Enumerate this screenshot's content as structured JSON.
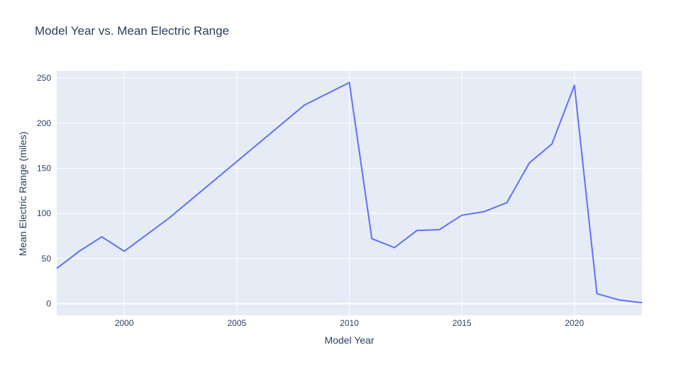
{
  "chart_data": {
    "type": "line",
    "title": "Model Year vs. Mean Electric Range",
    "xlabel": "Model Year",
    "ylabel": "Mean Electric Range (miles)",
    "xlim": [
      1997,
      2023
    ],
    "ylim": [
      -13,
      258
    ],
    "x_ticks": [
      2000,
      2005,
      2010,
      2015,
      2020
    ],
    "y_ticks": [
      0,
      50,
      100,
      150,
      200,
      250
    ],
    "grid": true,
    "legend": false,
    "colors": {
      "line": "#636efa",
      "plot_bg": "#e5ecf6",
      "grid": "#ffffff",
      "text": "#2a3f5f"
    },
    "series": [
      {
        "x": [
          1997,
          1998,
          1999,
          2000,
          2002,
          2008,
          2010,
          2011,
          2012,
          2013,
          2014,
          2015,
          2016,
          2017,
          2018,
          2019,
          2020,
          2021,
          2022,
          2023
        ],
        "values": [
          39,
          58,
          74,
          58,
          95,
          220,
          245,
          72,
          62,
          81,
          82,
          98,
          102,
          112,
          156,
          177,
          242,
          11,
          4,
          1
        ]
      }
    ]
  }
}
